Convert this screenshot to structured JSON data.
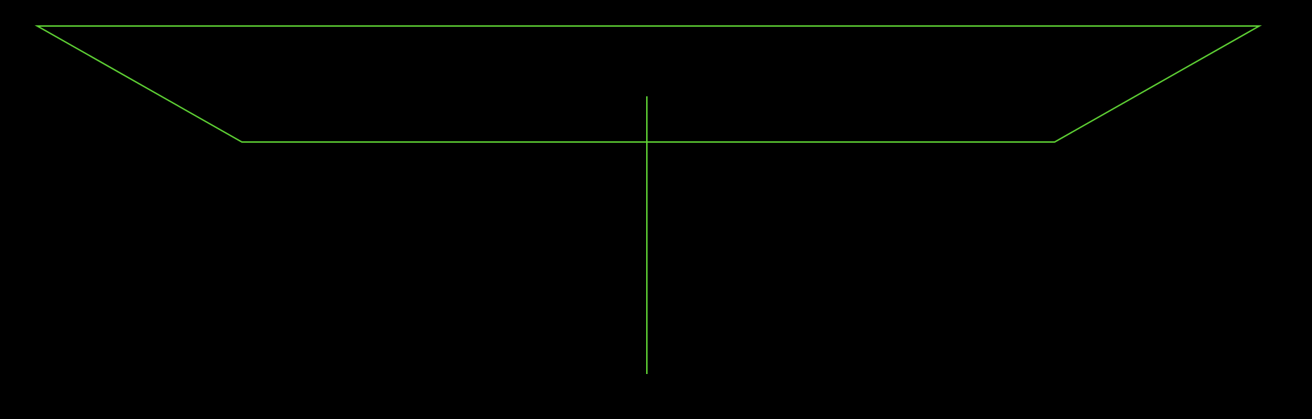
{
  "diagram": {
    "background_color": "#000000",
    "stroke_color": "#5fd335",
    "shapes": [
      {
        "kind": "trapezoid-outline",
        "name": "inverted-trapezoid"
      },
      {
        "kind": "vertical-line",
        "name": "vertical-axis-line"
      }
    ]
  }
}
